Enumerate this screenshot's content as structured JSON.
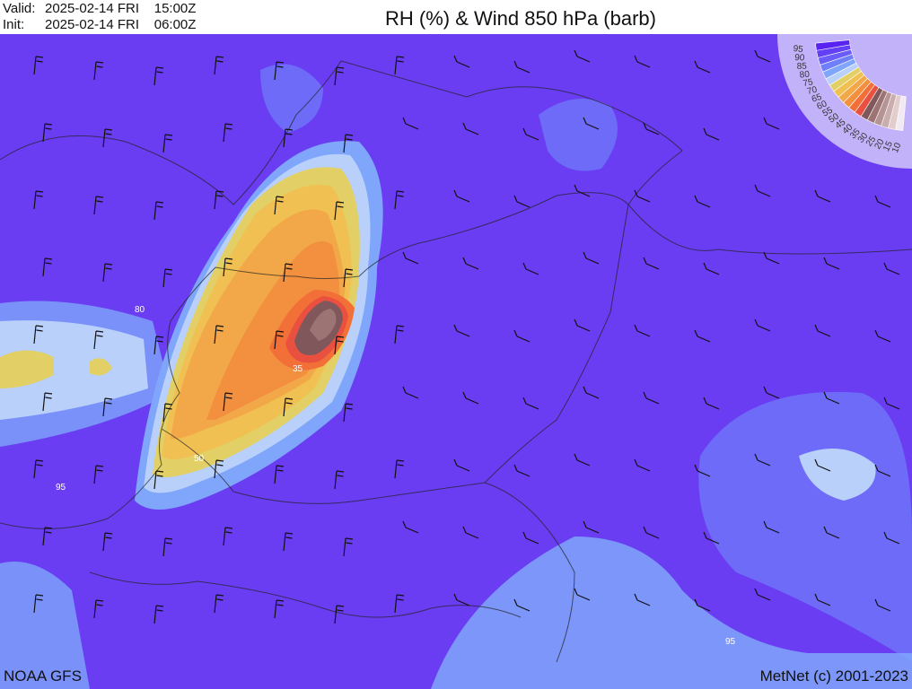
{
  "header": {
    "valid_label": "Valid:",
    "valid_value": "2025-02-14 FRI    15:00Z",
    "init_label": "Init:",
    "init_value": "2025-02-14 FRI    06:00Z",
    "title": "RH (%) & Wind 850 hPa (barb)"
  },
  "map": {
    "background_color": "#6a3cf2",
    "contour_labels": [
      "80",
      "35",
      "50",
      "95",
      "95"
    ]
  },
  "legend": {
    "levels": [
      {
        "label": "95",
        "color": "#5a22f0"
      },
      {
        "label": "90",
        "color": "#6340f6"
      },
      {
        "label": "85",
        "color": "#6a5cf8"
      },
      {
        "label": "80",
        "color": "#6f7ffa"
      },
      {
        "label": "75",
        "color": "#7fa6fb"
      },
      {
        "label": "70",
        "color": "#b8d0fa"
      },
      {
        "label": "65",
        "color": "#e2d066"
      },
      {
        "label": "60",
        "color": "#f0c052"
      },
      {
        "label": "55",
        "color": "#f2a848"
      },
      {
        "label": "50",
        "color": "#f29040"
      },
      {
        "label": "45",
        "color": "#f27038"
      },
      {
        "label": "40",
        "color": "#ea5040"
      },
      {
        "label": "35",
        "color": "#80585c"
      },
      {
        "label": "30",
        "color": "#9c7474"
      },
      {
        "label": "25",
        "color": "#b49494"
      },
      {
        "label": "20",
        "color": "#caaeae"
      },
      {
        "label": "15",
        "color": "#e2cccc"
      },
      {
        "label": "10",
        "color": "#f2eaf2"
      }
    ]
  },
  "footer": {
    "source": "NOAA GFS",
    "copyright": "MetNet (c) 2001-2023"
  }
}
